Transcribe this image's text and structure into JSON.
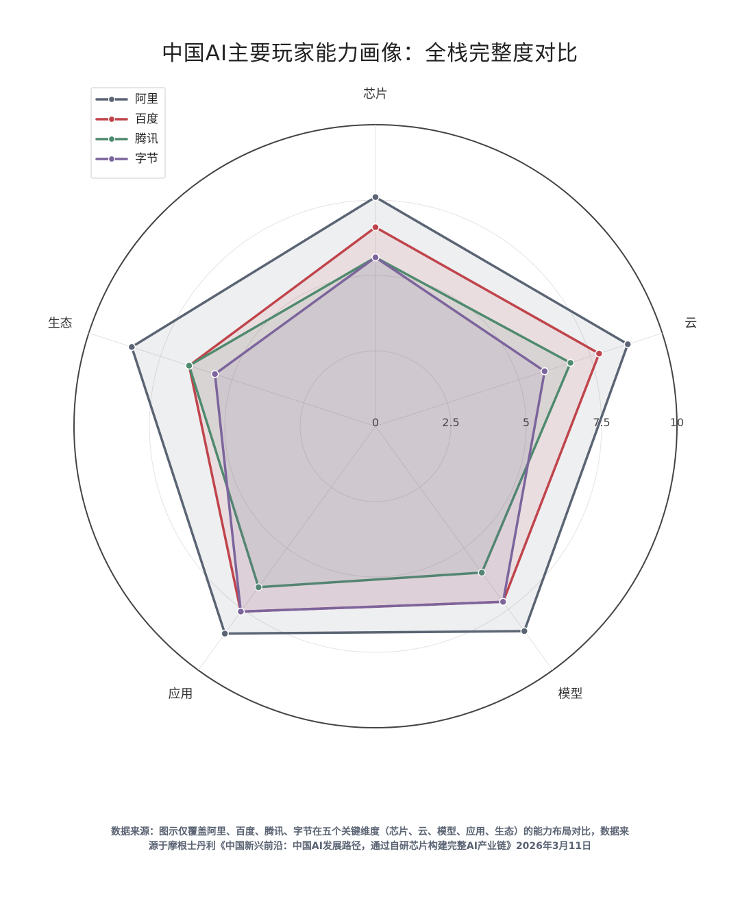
{
  "chart_data": {
    "type": "radar",
    "title": "中国AI主要玩家能力画像：全栈完整度对比",
    "axes": [
      "芯片",
      "云",
      "模型",
      "应用",
      "生态"
    ],
    "rlim": [
      0,
      10
    ],
    "rticks": [
      "0",
      "2.5",
      "5",
      "7.5",
      "10"
    ],
    "rtick_values": [
      0,
      2.5,
      5,
      7.5,
      10
    ],
    "grid": true,
    "legend_position": "top-left",
    "series": [
      {
        "name": "阿里",
        "color": "#5a6473",
        "values": [
          7.6,
          8.8,
          8.4,
          8.5,
          8.5
        ],
        "fill_opacity": 0.1
      },
      {
        "name": "百度",
        "color": "#c0444b",
        "values": [
          6.6,
          7.8,
          7.2,
          7.6,
          6.5
        ],
        "fill_opacity": 0.1
      },
      {
        "name": "腾讯",
        "color": "#4f8a6e",
        "values": [
          5.6,
          6.8,
          6.0,
          6.6,
          6.5
        ],
        "fill_opacity": 0.1
      },
      {
        "name": "字节",
        "color": "#7c649c",
        "values": [
          5.6,
          5.9,
          7.2,
          7.6,
          5.6
        ],
        "fill_opacity": 0.1
      }
    ]
  },
  "footer": {
    "line1": "数据来源：图示仅覆盖阿里、百度、腾讯、字节在五个关键维度（芯片、云、模型、应用、生态）的能力布局对比，数据来",
    "line2": "源于摩根士丹利《中国新兴前沿：中国AI发展路径，通过自研芯片构建完整AI产业链》2026年3月11日"
  }
}
